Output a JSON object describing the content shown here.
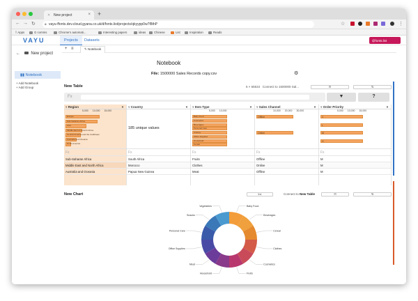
{
  "browser": {
    "tab_title": "New project",
    "url": "vayu-ffonts.dev.cloud.gyana.co.uk/d/fonts.list/projects/qkyypp0w7f8thP",
    "bookmarks": [
      "Apps",
      "G comms",
      "Chrome's automati...",
      "Interesting papers",
      "ideas",
      "Chinese",
      "List",
      "Inspiration",
      "Reads"
    ]
  },
  "app": {
    "logo": "VAYU",
    "nav_tabs": [
      "Projects",
      "Datasets"
    ],
    "user": "@fonts.list"
  },
  "sidebar": {
    "title": "New project",
    "notebook_label": "Notebook",
    "add_notebook": "Add Notebook",
    "add_group": "Add Group"
  },
  "toolbar": {
    "tab_label": "Notebook"
  },
  "notebook": {
    "title": "Notebook",
    "file_label": "File:",
    "file_name": "1500000 Sales Records copy.csv"
  },
  "table": {
    "title": "New Table",
    "dimensions": "5 × 65534",
    "connect_to": "Connect to",
    "connect_target": "1500000 Sal...",
    "fx_label": "Fx",
    "filter_icon": "filter-icon",
    "help_label": "?",
    "columns": [
      {
        "name": "Region",
        "highlighted": true,
        "ticks": [
          "5,000",
          "10,000",
          "15,000"
        ],
        "bars": [
          {
            "label": "Europe",
            "value": 0.9
          },
          {
            "label": "Sub-Saharan Africa",
            "value": 0.85
          },
          {
            "label": "Asia",
            "value": 0.55
          },
          {
            "label": "Middle East and North Africa",
            "value": 0.45
          },
          {
            "label": "Central America and the Caribbean",
            "value": 0.4
          },
          {
            "label": "Australia and Oceania",
            "value": 0.3
          },
          {
            "label": "North America",
            "value": 0.15
          }
        ],
        "cells": [
          "Sub-Saharan Africa",
          "Middle East and North Africa",
          "Australia and Oceania"
        ]
      },
      {
        "name": "Country",
        "unique": "185 unique values",
        "cells": [
          "South Africa",
          "Morocco",
          "Papua New Guinea"
        ]
      },
      {
        "name": "Item Type",
        "ticks": [
          "5,000",
          "10,000"
        ],
        "bars": [
          {
            "label": "Baby Food",
            "value": 0.9
          },
          {
            "label": "Cosmetics",
            "value": 0.9
          },
          {
            "label": "Beverages",
            "value": 0.9
          },
          {
            "label": "Personal Care",
            "value": 0.9
          },
          {
            "label": "Clothes",
            "value": 0.9
          },
          {
            "label": "Office Supplies",
            "value": 0.9
          },
          {
            "label": "Household",
            "value": 0.9
          },
          {
            "label": "Cereal",
            "value": 0.9
          }
        ],
        "cells": [
          "Fruits",
          "Clothes",
          "Meat"
        ]
      },
      {
        "name": "Sales Channel",
        "ticks": [
          "10,000",
          "20,000",
          "30,000"
        ],
        "bars": [
          {
            "label": "Offline",
            "value": 0.95
          },
          {
            "label": "Online",
            "value": 0.95
          }
        ],
        "cells": [
          "Offline",
          "Online",
          "Offline"
        ]
      },
      {
        "name": "Order Priority",
        "ticks": [
          "5,000",
          "10,000",
          "15,000"
        ],
        "bars": [
          {
            "label": "C",
            "value": 0.9
          },
          {
            "label": "L",
            "value": 0.9
          },
          {
            "label": "M",
            "value": 0.9
          },
          {
            "label": "H",
            "value": 0.9
          }
        ],
        "cells": [
          "M",
          "M",
          "M"
        ]
      }
    ]
  },
  "chart": {
    "title": "New Chart",
    "connect_to": "Connect to",
    "connect_target": "New Table"
  },
  "chart_data": {
    "type": "pie",
    "categories": [
      "Baby Food",
      "Beverages",
      "Cereal",
      "Clothes",
      "Cosmetics",
      "Fruits",
      "Household",
      "Meat",
      "Office Supplies",
      "Personal Care",
      "Snacks",
      "Vegetables"
    ],
    "values": [
      1,
      1,
      1,
      1,
      1,
      1,
      1,
      1,
      1,
      1,
      1,
      1
    ],
    "colors": [
      "#f39c3a",
      "#f0a03c",
      "#e58a2e",
      "#d35b48",
      "#c94b5a",
      "#b8386e",
      "#8a3a8a",
      "#6c3c9a",
      "#4a4aa6",
      "#3a5aaa",
      "#3a78b8",
      "#4a9ad0"
    ],
    "donut": true
  }
}
